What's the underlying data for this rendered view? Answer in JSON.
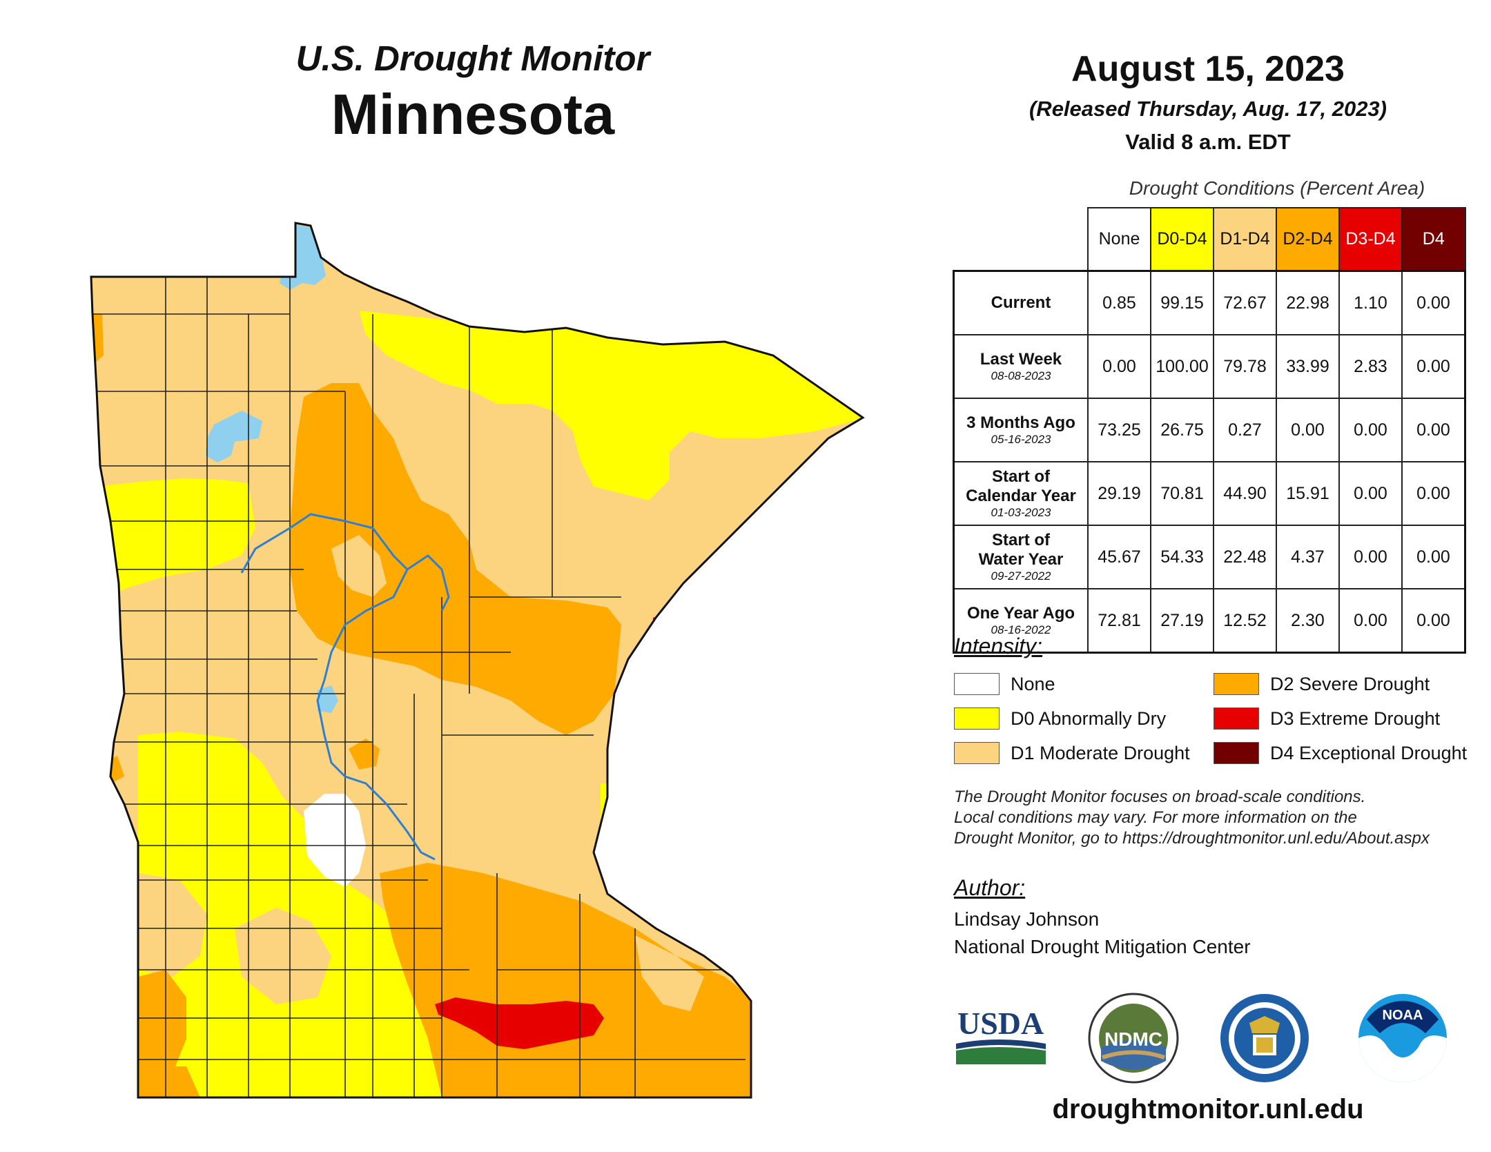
{
  "header": {
    "program": "U.S. Drought Monitor",
    "state": "Minnesota",
    "date": "August 15, 2023",
    "released": "(Released Thursday, Aug. 17, 2023)",
    "valid": "Valid 8 a.m. EDT"
  },
  "table": {
    "caption": "Drought Conditions (Percent Area)",
    "columns": [
      {
        "label": "None",
        "bg": "#ffffff",
        "fg": "#111111"
      },
      {
        "label": "D0-D4",
        "bg": "#ffff00",
        "fg": "#111111"
      },
      {
        "label": "D1-D4",
        "bg": "#fcd37f",
        "fg": "#111111"
      },
      {
        "label": "D2-D4",
        "bg": "#ffaa00",
        "fg": "#111111"
      },
      {
        "label": "D3-D4",
        "bg": "#e60000",
        "fg": "#ffffff"
      },
      {
        "label": "D4",
        "bg": "#730000",
        "fg": "#ffffff"
      }
    ],
    "rows": [
      {
        "label": [
          "Current"
        ],
        "date": "",
        "values": [
          "0.85",
          "99.15",
          "72.67",
          "22.98",
          "1.10",
          "0.00"
        ]
      },
      {
        "label": [
          "Last Week"
        ],
        "date": "08-08-2023",
        "values": [
          "0.00",
          "100.00",
          "79.78",
          "33.99",
          "2.83",
          "0.00"
        ]
      },
      {
        "label": [
          "3 Months Ago"
        ],
        "date": "05-16-2023",
        "values": [
          "73.25",
          "26.75",
          "0.27",
          "0.00",
          "0.00",
          "0.00"
        ]
      },
      {
        "label": [
          "Start of",
          "Calendar Year"
        ],
        "date": "01-03-2023",
        "values": [
          "29.19",
          "70.81",
          "44.90",
          "15.91",
          "0.00",
          "0.00"
        ]
      },
      {
        "label": [
          "Start of",
          "Water Year"
        ],
        "date": "09-27-2022",
        "values": [
          "45.67",
          "54.33",
          "22.48",
          "4.37",
          "0.00",
          "0.00"
        ]
      },
      {
        "label": [
          "One Year Ago"
        ],
        "date": "08-16-2022",
        "values": [
          "72.81",
          "27.19",
          "12.52",
          "2.30",
          "0.00",
          "0.00"
        ]
      }
    ]
  },
  "legend": {
    "title": "Intensity:",
    "items": [
      {
        "label": "None",
        "color": "#ffffff"
      },
      {
        "label": "D0 Abnormally Dry",
        "color": "#ffff00"
      },
      {
        "label": "D1 Moderate Drought",
        "color": "#fcd37f"
      },
      {
        "label": "D2 Severe Drought",
        "color": "#ffaa00"
      },
      {
        "label": "D3 Extreme Drought",
        "color": "#e60000"
      },
      {
        "label": "D4 Exceptional Drought",
        "color": "#730000"
      }
    ]
  },
  "note": {
    "line1": "The Drought Monitor focuses on broad-scale conditions.",
    "line2": "Local conditions may vary. For more information on the",
    "line3": "Drought Monitor, go to https://droughtmonitor.unl.edu/About.aspx"
  },
  "author": {
    "title": "Author:",
    "name": "Lindsay Johnson",
    "org": "National Drought Mitigation Center"
  },
  "logos": {
    "usda": "USDA",
    "ndmc": "NDMC",
    "noaa": "NOAA"
  },
  "website": "droughtmonitor.unl.edu",
  "colors": {
    "water": "#8fd0ef",
    "rivers": "#2d7fd1",
    "county_lines": "#222222"
  }
}
